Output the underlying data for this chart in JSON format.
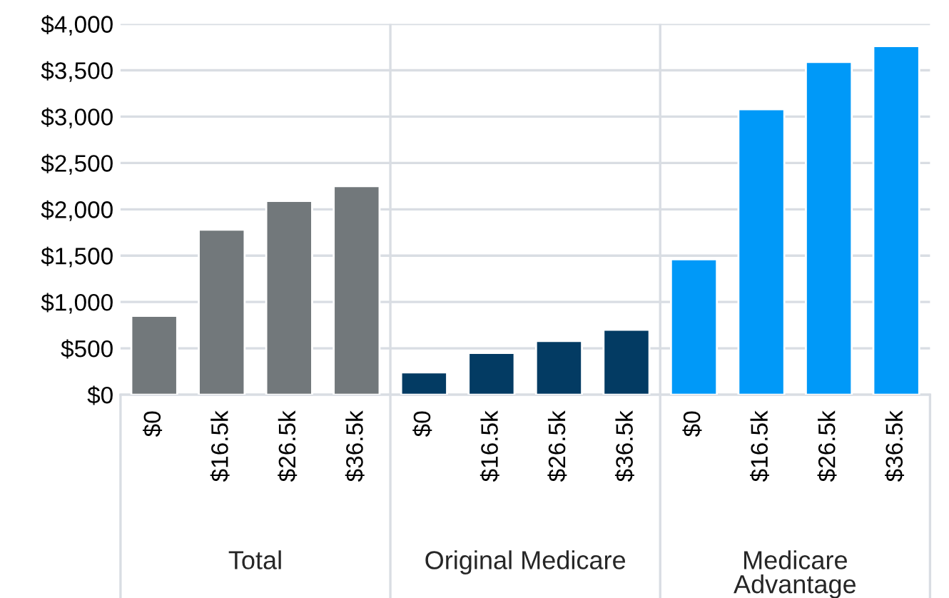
{
  "chart_data": {
    "type": "bar",
    "categories": [
      "$0",
      "$16.5k",
      "$26.5k",
      "$36.5k",
      "$0",
      "$16.5k",
      "$26.5k",
      "$36.5k",
      "$0",
      "$16.5k",
      "$26.5k",
      "$36.5k"
    ],
    "series": [
      {
        "color": "#72787b",
        "values": [
          850,
          1780,
          2090,
          2250,
          null,
          null,
          null,
          null,
          null,
          null,
          null,
          null
        ]
      },
      {
        "color": "#033b63",
        "values": [
          null,
          null,
          null,
          null,
          240,
          450,
          580,
          700,
          null,
          null,
          null,
          null
        ]
      },
      {
        "color": "#0099f8",
        "values": [
          null,
          null,
          null,
          null,
          null,
          null,
          null,
          null,
          1460,
          3080,
          3590,
          3760
        ]
      }
    ],
    "ylim": [
      0,
      4000
    ],
    "yticks": [
      {
        "value": 0,
        "label": "$0"
      },
      {
        "value": 500,
        "label": "$500"
      },
      {
        "value": 1000,
        "label": "$1,000"
      },
      {
        "value": 1500,
        "label": "$1,500"
      },
      {
        "value": 2000,
        "label": "$2,000"
      },
      {
        "value": 2500,
        "label": "$2,500"
      },
      {
        "value": 3000,
        "label": "$3,000"
      },
      {
        "value": 3500,
        "label": "$3,500"
      },
      {
        "value": 4000,
        "label": "$4,000"
      }
    ],
    "annotations": [
      "Total",
      "Original Medicare",
      "Medicare Advantage"
    ],
    "grid": "y"
  }
}
